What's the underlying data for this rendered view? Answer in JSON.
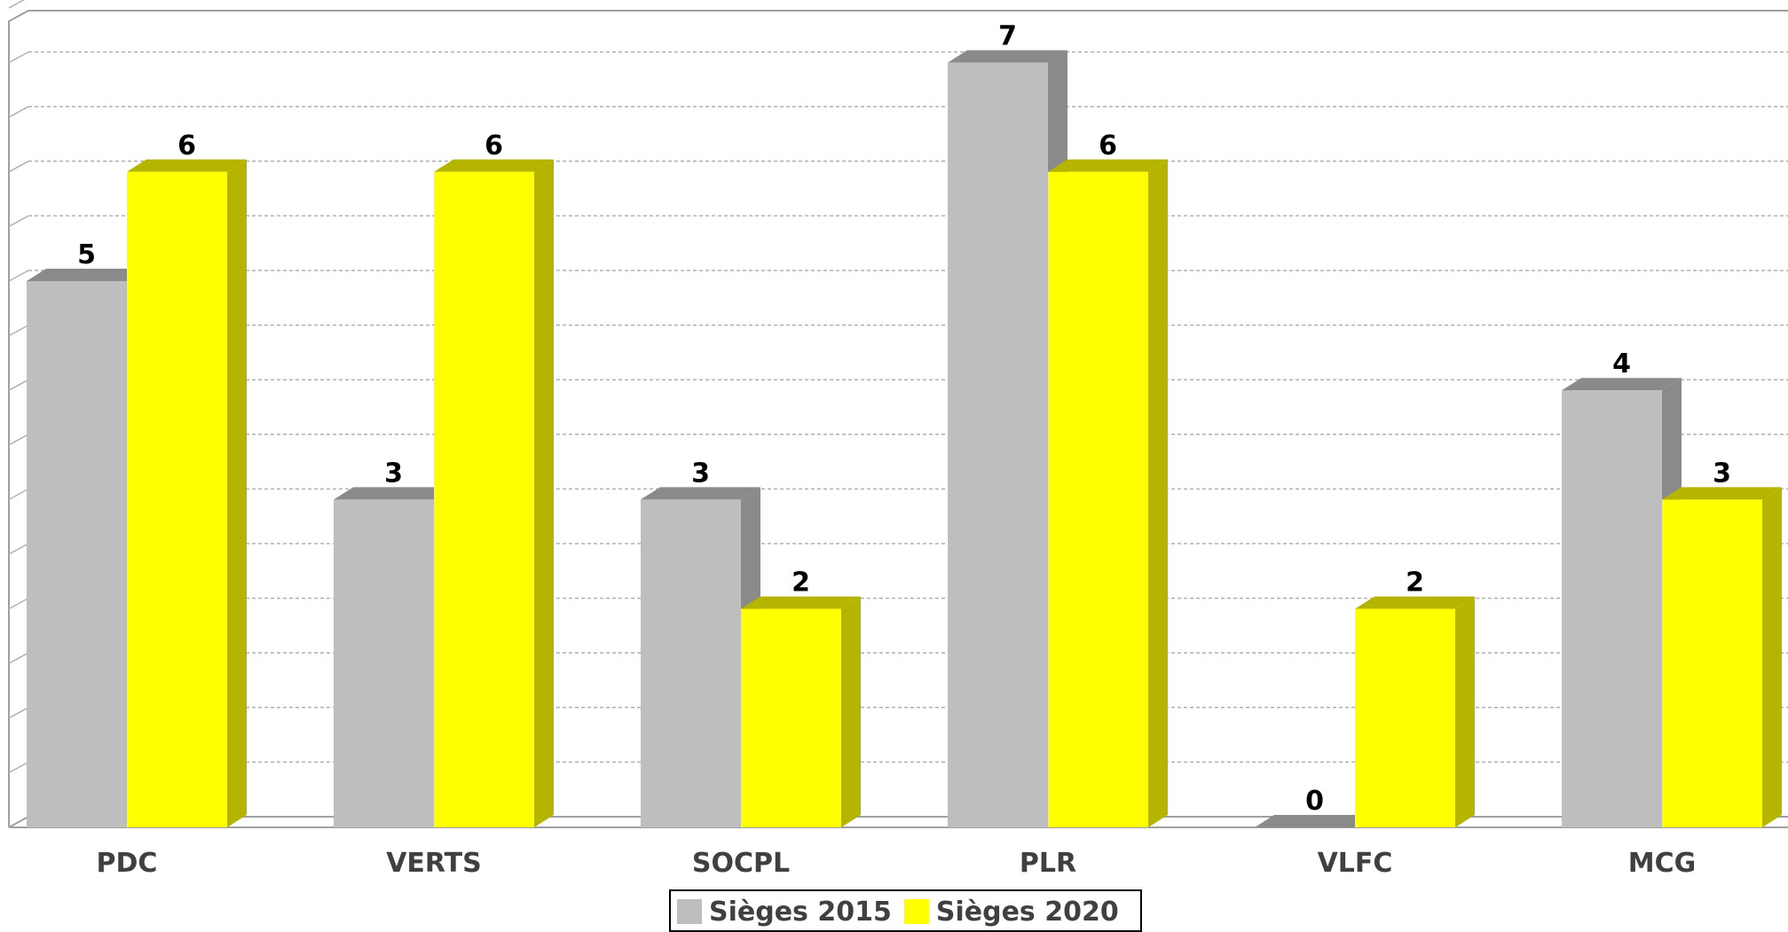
{
  "chart_data": {
    "type": "bar",
    "categories": [
      "PDC",
      "VERTS",
      "SOCPL",
      "PLR",
      "VLFC",
      "MCG"
    ],
    "series": [
      {
        "name": "Sièges 2015",
        "values": [
          5,
          3,
          3,
          7,
          0,
          4
        ],
        "color": "#bebebe",
        "side_color": "#8a8a8a"
      },
      {
        "name": "Sièges 2020",
        "values": [
          6,
          6,
          2,
          6,
          2,
          3
        ],
        "color": "#ffff00",
        "side_color": "#b5b500"
      }
    ],
    "ylim": [
      0,
      7.5
    ],
    "grid": true,
    "legend_position": "bottom-center",
    "title": "",
    "xlabel": "",
    "ylabel": ""
  }
}
